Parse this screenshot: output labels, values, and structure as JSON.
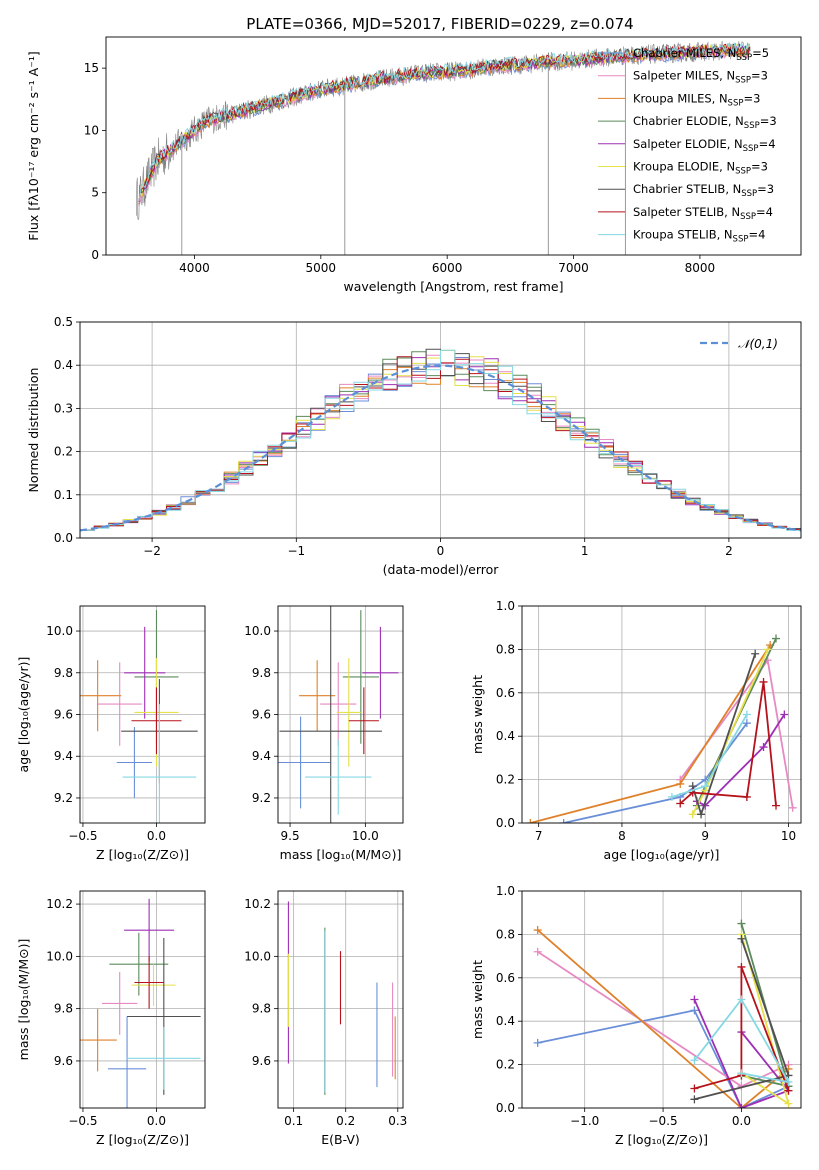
{
  "figure": {
    "title": "PLATE=0366, MJD=52017, FIBERID=0229, z=0.074"
  },
  "model_colors": [
    "#6a8fd8",
    "#e78ac3",
    "#e0812a",
    "#5b8a5b",
    "#9e2fb5",
    "#e6e04a",
    "#505050",
    "#b5121b",
    "#86d8e3"
  ],
  "chart_data": [
    {
      "id": "spectrum",
      "type": "line",
      "xlabel": "wavelength [Angstrom, rest frame]",
      "ylabel": "Flux [fλ10⁻¹⁷ erg cm⁻² s⁻¹ A⁻¹]",
      "xlim": [
        3300,
        8800
      ],
      "ylim": [
        0,
        17.5
      ],
      "xticks": [
        "4000",
        "5000",
        "6000",
        "7000",
        "8000"
      ],
      "yticks": [
        "0",
        "5",
        "10",
        "15"
      ],
      "legend_position": "right",
      "legend": [
        "Chabrier MILES, N_SSP=5",
        "Salpeter MILES, N_SSP=3",
        "Kroupa MILES, N_SSP=3",
        "Chabrier ELODIE, N_SSP=3",
        "Salpeter ELODIE, N_SSP=4",
        "Kroupa ELODIE, N_SSP=3",
        "Chabrier STELIB, N_SSP=3",
        "Salpeter STELIB, N_SSP=4",
        "Kroupa STELIB, N_SSP=4"
      ],
      "observed_color": "#808080",
      "model_x": [
        3560,
        3700,
        3900,
        4100,
        4300,
        4500,
        4800,
        5000,
        5200,
        5400,
        5600,
        5800,
        6000,
        6200,
        6400,
        6600,
        6800,
        7000,
        7200,
        7400,
        7600,
        7800,
        8000,
        8200,
        8400
      ],
      "model_y": [
        4.6,
        7.5,
        9.2,
        10.8,
        11.3,
        11.9,
        12.7,
        13.3,
        13.6,
        14.0,
        14.3,
        14.6,
        14.7,
        14.9,
        15.2,
        15.3,
        15.5,
        15.6,
        15.8,
        16.0,
        16.1,
        16.2,
        16.3,
        16.4,
        16.4
      ],
      "spikes_x": [
        3900,
        5190,
        6800,
        7410
      ]
    },
    {
      "id": "residuals",
      "type": "histogram",
      "xlabel": "(data-model)/error",
      "ylabel": "Normed distribution",
      "xlim": [
        -2.5,
        2.5
      ],
      "ylim": [
        0,
        0.5
      ],
      "xticks": [
        "−2",
        "−1",
        "0",
        "1",
        "2"
      ],
      "yticks": [
        "0.0",
        "0.1",
        "0.2",
        "0.3",
        "0.4",
        "0.5"
      ],
      "legend": [
        "𝒩(0,1)"
      ],
      "legend_position": "top-right",
      "bin_width": 0.1
    },
    {
      "id": "age-vs-Z",
      "type": "scatter",
      "xlabel": "Z [log₁₀(Z/Z⊙)]",
      "ylabel": "age  [log₁₀(age/yr)]",
      "xlim": [
        -0.52,
        0.33
      ],
      "ylim": [
        9.08,
        10.12
      ],
      "xticks": [
        "−0.5",
        "0.0"
      ],
      "yticks": [
        "9.2",
        "9.4",
        "9.6",
        "9.8",
        "10.0"
      ],
      "points": [
        {
          "x": -0.15,
          "y": 9.37,
          "xerr": 0.12,
          "yerr": 0.17
        },
        {
          "x": -0.25,
          "y": 9.65,
          "xerr": 0.15,
          "yerr": 0.2
        },
        {
          "x": -0.4,
          "y": 9.69,
          "xerr": 0.16,
          "yerr": 0.17
        },
        {
          "x": 0.0,
          "y": 9.78,
          "xerr": 0.15,
          "yerr": 0.32
        },
        {
          "x": -0.08,
          "y": 9.8,
          "xerr": 0.14,
          "yerr": 0.22
        },
        {
          "x": 0.0,
          "y": 9.61,
          "xerr": 0.15,
          "yerr": 0.26
        },
        {
          "x": 0.02,
          "y": 9.52,
          "xerr": 0.26,
          "yerr": 0.25
        },
        {
          "x": 0.0,
          "y": 9.57,
          "xerr": 0.17,
          "yerr": 0.16
        },
        {
          "x": 0.02,
          "y": 9.3,
          "xerr": 0.25,
          "yerr": 0.35
        }
      ]
    },
    {
      "id": "age-vs-mass",
      "type": "scatter",
      "xlabel": "mass [log₁₀(M/M⊙)]",
      "ylabel": "",
      "xlim": [
        9.42,
        10.25
      ],
      "ylim": [
        9.08,
        10.12
      ],
      "xticks": [
        "9.5",
        "10.0"
      ],
      "yticks": [
        "9.2",
        "9.4",
        "9.6",
        "9.8",
        "10.0"
      ],
      "points": [
        {
          "x": 9.57,
          "y": 9.37,
          "xerr": 0.2,
          "yerr": 0.22
        },
        {
          "x": 9.82,
          "y": 9.65,
          "xerr": 0.12,
          "yerr": 0.2
        },
        {
          "x": 9.68,
          "y": 9.69,
          "xerr": 0.12,
          "yerr": 0.17
        },
        {
          "x": 9.97,
          "y": 9.78,
          "xerr": 0.12,
          "yerr": 0.32
        },
        {
          "x": 10.1,
          "y": 9.8,
          "xerr": 0.12,
          "yerr": 0.22
        },
        {
          "x": 9.89,
          "y": 9.61,
          "xerr": 0.08,
          "yerr": 0.26
        },
        {
          "x": 9.77,
          "y": 9.52,
          "xerr": 0.34,
          "yerr": 0.6
        },
        {
          "x": 9.99,
          "y": 9.57,
          "xerr": 0.1,
          "yerr": 0.16
        },
        {
          "x": 9.82,
          "y": 9.3,
          "xerr": 0.22,
          "yerr": 0.18
        }
      ]
    },
    {
      "id": "weight-vs-age",
      "type": "line",
      "xlabel": "age  [log₁₀(age/yr)]",
      "ylabel": "mass weight",
      "xlim": [
        6.8,
        10.15
      ],
      "ylim": [
        0,
        1
      ],
      "xticks": [
        "7",
        "8",
        "9",
        "10"
      ],
      "yticks": [
        "0.0",
        "0.2",
        "0.4",
        "0.6",
        "0.8",
        "1.0"
      ],
      "series": [
        {
          "x": [
            7.3,
            8.7,
            9.0,
            9.5
          ],
          "y": [
            0.0,
            0.12,
            0.2,
            0.46
          ]
        },
        {
          "x": [
            8.7,
            9.75,
            10.05
          ],
          "y": [
            0.2,
            0.75,
            0.07
          ]
        },
        {
          "x": [
            6.9,
            8.7,
            9.78
          ],
          "y": [
            0.0,
            0.18,
            0.82
          ]
        },
        {
          "x": [
            8.9,
            9.0,
            9.85
          ],
          "y": [
            0.08,
            0.17,
            0.85
          ]
        },
        {
          "x": [
            8.9,
            9.0,
            9.7,
            9.95
          ],
          "y": [
            0.1,
            0.08,
            0.35,
            0.5
          ]
        },
        {
          "x": [
            8.85,
            9.0,
            9.75
          ],
          "y": [
            0.04,
            0.15,
            0.8
          ]
        },
        {
          "x": [
            8.85,
            8.95,
            9.6
          ],
          "y": [
            0.17,
            0.04,
            0.78
          ]
        },
        {
          "x": [
            8.7,
            8.85,
            9.5,
            9.7,
            9.85
          ],
          "y": [
            0.09,
            0.14,
            0.12,
            0.65,
            0.08
          ]
        },
        {
          "x": [
            8.6,
            9.0,
            9.5
          ],
          "y": [
            0.12,
            0.17,
            0.5
          ]
        }
      ]
    },
    {
      "id": "mass-vs-Z",
      "type": "scatter",
      "xlabel": "Z [log₁₀(Z/Z⊙)]",
      "ylabel": "mass [log₁₀(M/M⊙)]",
      "xlim": [
        -0.52,
        0.33
      ],
      "ylim": [
        9.42,
        10.25
      ],
      "xticks": [
        "−0.5",
        "0.0"
      ],
      "yticks": [
        "9.6",
        "9.8",
        "10.0",
        "10.2"
      ],
      "points": [
        {
          "x": -0.2,
          "y": 9.57,
          "xerr": 0.13,
          "yerr": 0.2
        },
        {
          "x": -0.25,
          "y": 9.82,
          "xerr": 0.12,
          "yerr": 0.12
        },
        {
          "x": -0.4,
          "y": 9.68,
          "xerr": 0.13,
          "yerr": 0.12
        },
        {
          "x": -0.12,
          "y": 9.97,
          "xerr": 0.2,
          "yerr": 0.12
        },
        {
          "x": -0.05,
          "y": 10.1,
          "xerr": 0.17,
          "yerr": 0.12
        },
        {
          "x": -0.02,
          "y": 9.89,
          "xerr": 0.15,
          "yerr": 0.08
        },
        {
          "x": 0.05,
          "y": 9.77,
          "xerr": 0.25,
          "yerr": 0.3
        },
        {
          "x": -0.05,
          "y": 9.9,
          "xerr": 0.1,
          "yerr": 0.1
        },
        {
          "x": 0.05,
          "y": 9.61,
          "xerr": 0.25,
          "yerr": 0.12
        }
      ]
    },
    {
      "id": "mass-vs-ebv",
      "type": "scatter",
      "xlabel": "E(B-V)",
      "ylabel": "",
      "xlim": [
        0.07,
        0.31
      ],
      "ylim": [
        9.42,
        10.25
      ],
      "xticks": [
        "0.1",
        "0.2",
        "0.3"
      ],
      "yticks": [
        "9.6",
        "9.8",
        "10.0",
        "10.2"
      ],
      "points": [
        {
          "x": 0.26,
          "y": 9.7,
          "xerr": 0,
          "yerr": 0.2
        },
        {
          "x": 0.29,
          "y": 9.72,
          "xerr": 0,
          "yerr": 0.18
        },
        {
          "x": 0.295,
          "y": 9.65,
          "xerr": 0,
          "yerr": 0.12
        },
        {
          "x": 0.16,
          "y": 9.79,
          "xerr": 0,
          "yerr": 0.32
        },
        {
          "x": 0.09,
          "y": 9.9,
          "xerr": 0,
          "yerr": 0.31
        },
        {
          "x": 0.09,
          "y": 9.87,
          "xerr": 0,
          "yerr": 0.14
        },
        {
          "x": 0.16,
          "y": 9.79,
          "xerr": 0,
          "yerr": 0.31
        },
        {
          "x": 0.19,
          "y": 9.88,
          "xerr": 0,
          "yerr": 0.14
        },
        {
          "x": 0.16,
          "y": 9.79,
          "xerr": 0,
          "yerr": 0.31
        }
      ]
    },
    {
      "id": "weight-vs-Z",
      "type": "line",
      "xlabel": "Z [log₁₀(Z/Z⊙)]",
      "ylabel": "mass weight",
      "xlim": [
        -1.4,
        0.38
      ],
      "ylim": [
        0,
        1
      ],
      "xticks": [
        "−1.0",
        "−0.5",
        "0.0"
      ],
      "yticks": [
        "0.0",
        "0.2",
        "0.4",
        "0.6",
        "0.8",
        "1.0"
      ],
      "series": [
        {
          "x": [
            -1.3,
            -0.3,
            0.0,
            0.3
          ],
          "y": [
            0.3,
            0.45,
            0.0,
            0.1
          ]
        },
        {
          "x": [
            -1.3,
            0.0,
            0.3
          ],
          "y": [
            0.72,
            0.1,
            0.2
          ]
        },
        {
          "x": [
            -1.3,
            0.0,
            0.3
          ],
          "y": [
            0.82,
            0.0,
            0.18
          ]
        },
        {
          "x": [
            0.0,
            0.3,
            0.0
          ],
          "y": [
            0.85,
            0.1,
            0.15
          ]
        },
        {
          "x": [
            -0.3,
            0.0,
            0.3,
            0.0
          ],
          "y": [
            0.5,
            0.0,
            0.08,
            0.35
          ]
        },
        {
          "x": [
            0.0,
            0.3,
            0.0
          ],
          "y": [
            0.8,
            0.02,
            0.16
          ]
        },
        {
          "x": [
            0.0,
            0.3,
            -0.3
          ],
          "y": [
            0.78,
            0.15,
            0.04
          ]
        },
        {
          "x": [
            -0.3,
            0.0,
            0.0,
            0.3
          ],
          "y": [
            0.09,
            0.15,
            0.65,
            0.08
          ]
        },
        {
          "x": [
            -0.3,
            0.0,
            0.3,
            0.0
          ],
          "y": [
            0.22,
            0.5,
            0.12,
            0.16
          ]
        }
      ]
    }
  ]
}
